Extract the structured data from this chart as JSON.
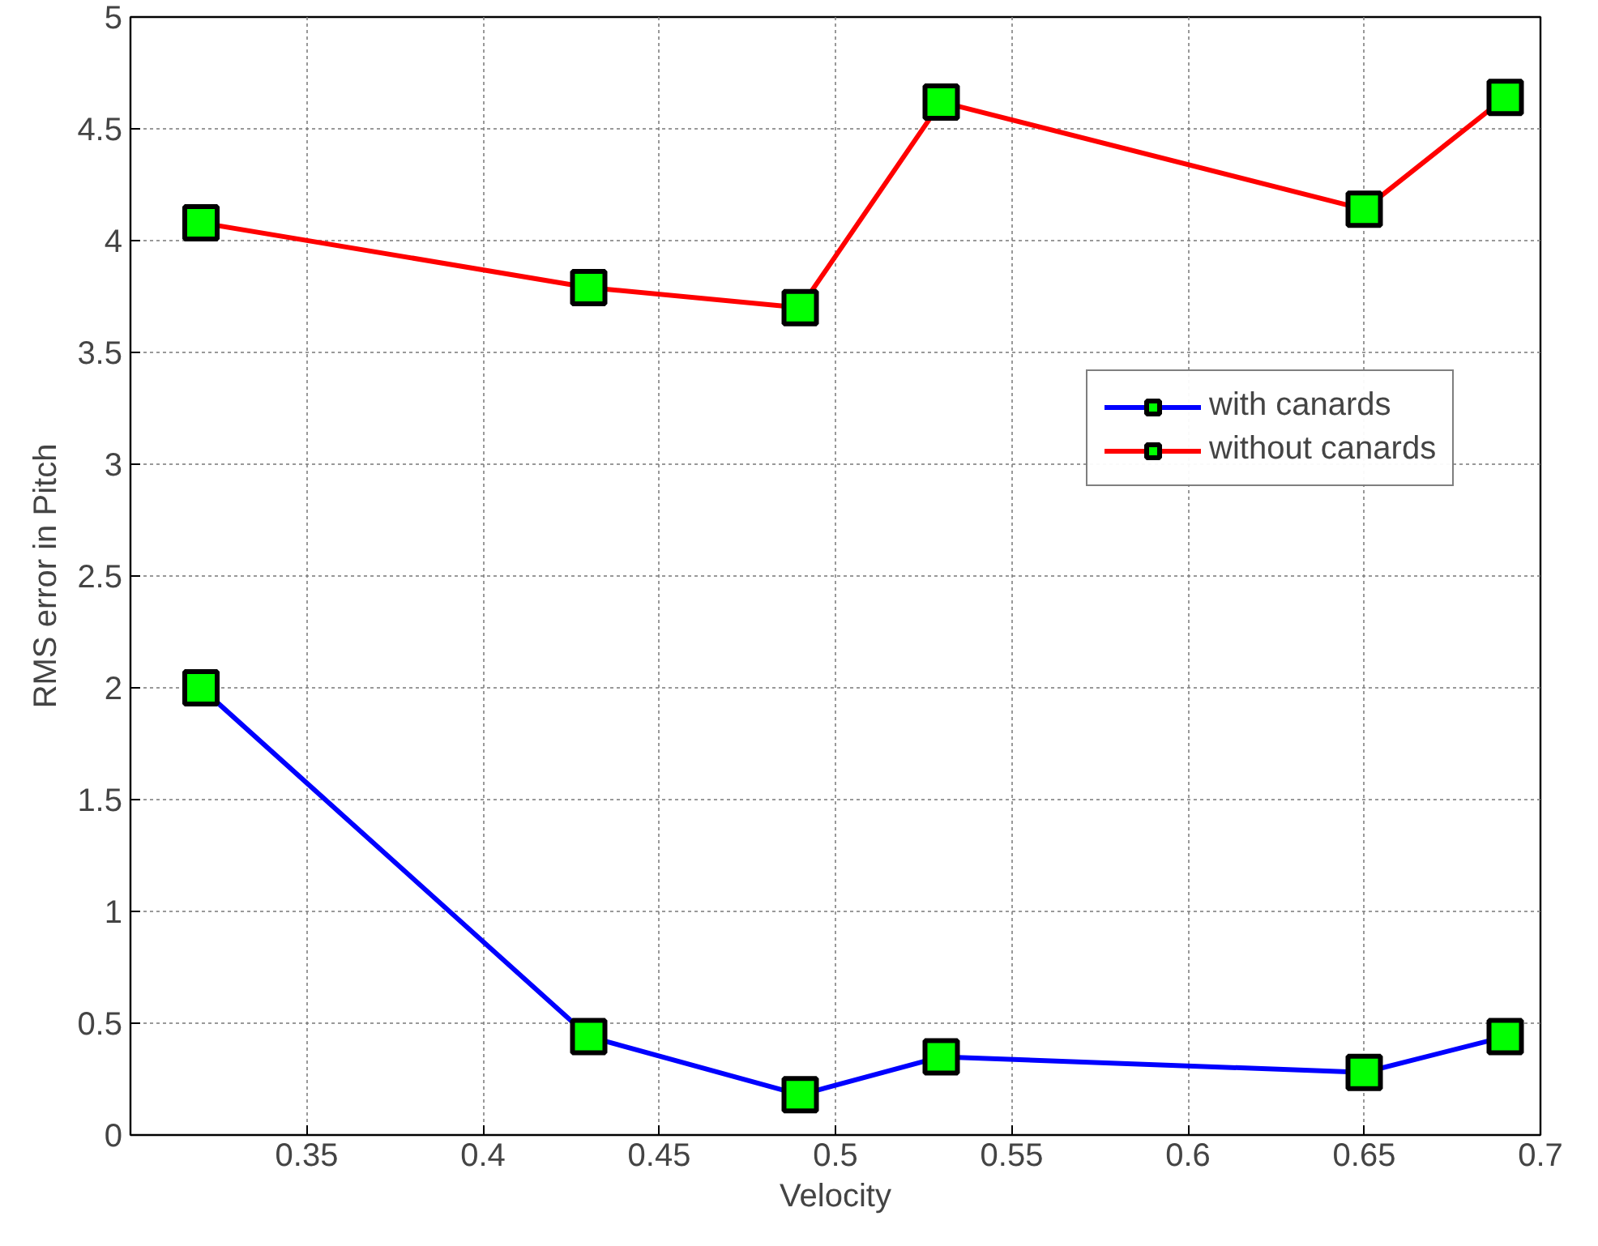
{
  "chart_data": {
    "type": "line",
    "xlabel": "Velocity",
    "ylabel": "RMS error in Pitch",
    "x": [
      0.32,
      0.43,
      0.49,
      0.53,
      0.65,
      0.69
    ],
    "series": [
      {
        "name": "with canards",
        "color": "#0000ff",
        "values": [
          2.0,
          0.44,
          0.18,
          0.35,
          0.28,
          0.44
        ]
      },
      {
        "name": "without canards",
        "color": "#ff0000",
        "values": [
          4.08,
          3.79,
          3.7,
          4.62,
          4.14,
          4.64
        ]
      }
    ],
    "xlim": [
      0.3,
      0.7
    ],
    "xticks": [
      0.35,
      0.4,
      0.45,
      0.5,
      0.55,
      0.6,
      0.65,
      0.7
    ],
    "ylim": [
      0,
      5
    ],
    "yticks": [
      0,
      0.5,
      1,
      1.5,
      2,
      2.5,
      3,
      3.5,
      4,
      4.5,
      5
    ],
    "grid": true,
    "legend": "right",
    "marker": "square",
    "line_style": "solid"
  }
}
